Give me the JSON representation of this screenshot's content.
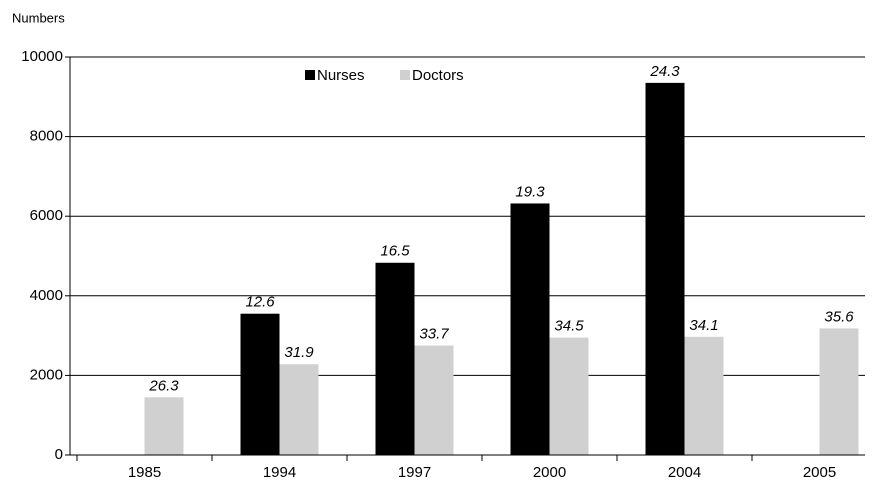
{
  "chart_data": {
    "type": "bar",
    "y_axis_label": "Numbers",
    "categories": [
      "1985",
      "1994",
      "1997",
      "2000",
      "2004",
      "2005"
    ],
    "series": [
      {
        "name": "Nurses",
        "color": "#000000",
        "values": [
          null,
          3550,
          4830,
          6320,
          9350,
          null
        ],
        "labels": [
          null,
          "12.6",
          "16.5",
          "19.3",
          "24.3",
          null
        ]
      },
      {
        "name": "Doctors",
        "color": "#d0d0d0",
        "values": [
          1450,
          2280,
          2750,
          2950,
          2970,
          3180
        ],
        "labels": [
          "26.3",
          "31.9",
          "33.7",
          "34.5",
          "34.1",
          "35.6"
        ]
      }
    ],
    "ylim": [
      0,
      10000
    ],
    "yticks": [
      0,
      2000,
      4000,
      6000,
      8000,
      10000
    ],
    "grid": true,
    "legend": "top"
  }
}
